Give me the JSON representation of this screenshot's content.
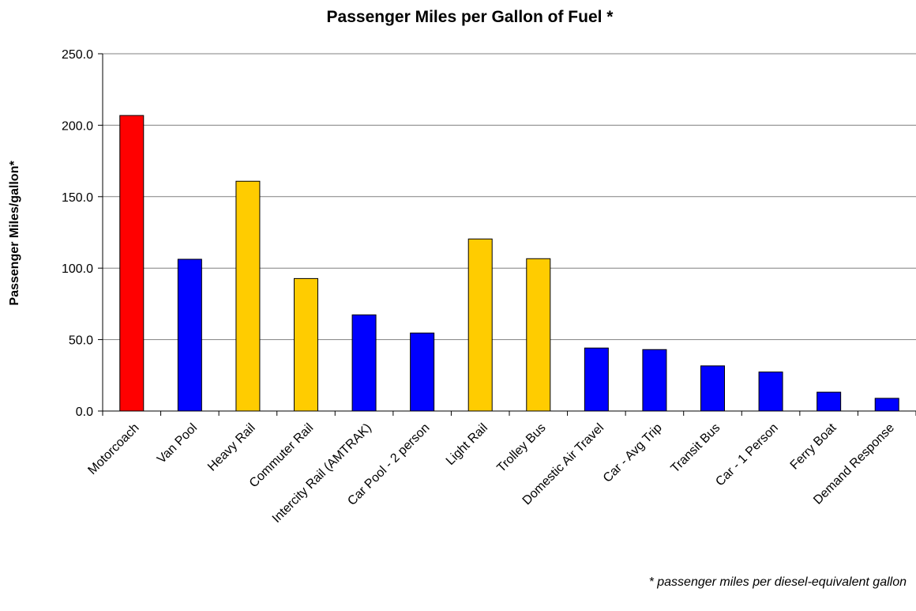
{
  "chart_data": {
    "type": "bar",
    "title": "Passenger Miles per Gallon of Fuel *",
    "xlabel": "",
    "ylabel": "Passenger Miles/gallon*",
    "ylim": [
      0,
      250
    ],
    "yticks": [
      "0.0",
      "50.0",
      "100.0",
      "150.0",
      "200.0",
      "250.0"
    ],
    "grid": true,
    "categories": [
      "Motorcoach",
      "Van Pool",
      "Heavy Rail",
      "Commuter Rail",
      "Intercity Rail (AMTRAK)",
      "Car Pool - 2 person",
      "Light Rail",
      "Trolley Bus",
      "Domestic Air Travel",
      "Car - Avg Trip",
      "Transit Bus",
      "Car - 1 Person",
      "Ferry Boat",
      "Demand Response"
    ],
    "values": [
      206.8,
      106.2,
      160.8,
      92.7,
      67.3,
      54.6,
      120.4,
      106.6,
      44.1,
      43.0,
      31.6,
      27.3,
      13.2,
      8.9
    ],
    "bar_colors": [
      "#ff0000",
      "#0000ff",
      "#ffcc00",
      "#ffcc00",
      "#0000ff",
      "#0000ff",
      "#ffcc00",
      "#ffcc00",
      "#0000ff",
      "#0000ff",
      "#0000ff",
      "#0000ff",
      "#0000ff",
      "#0000ff"
    ],
    "footnote": "* passenger miles per diesel-equivalent gallon"
  },
  "colors": {
    "gridline": "#808080",
    "axis": "#000000",
    "bar_outline": "#000000"
  }
}
